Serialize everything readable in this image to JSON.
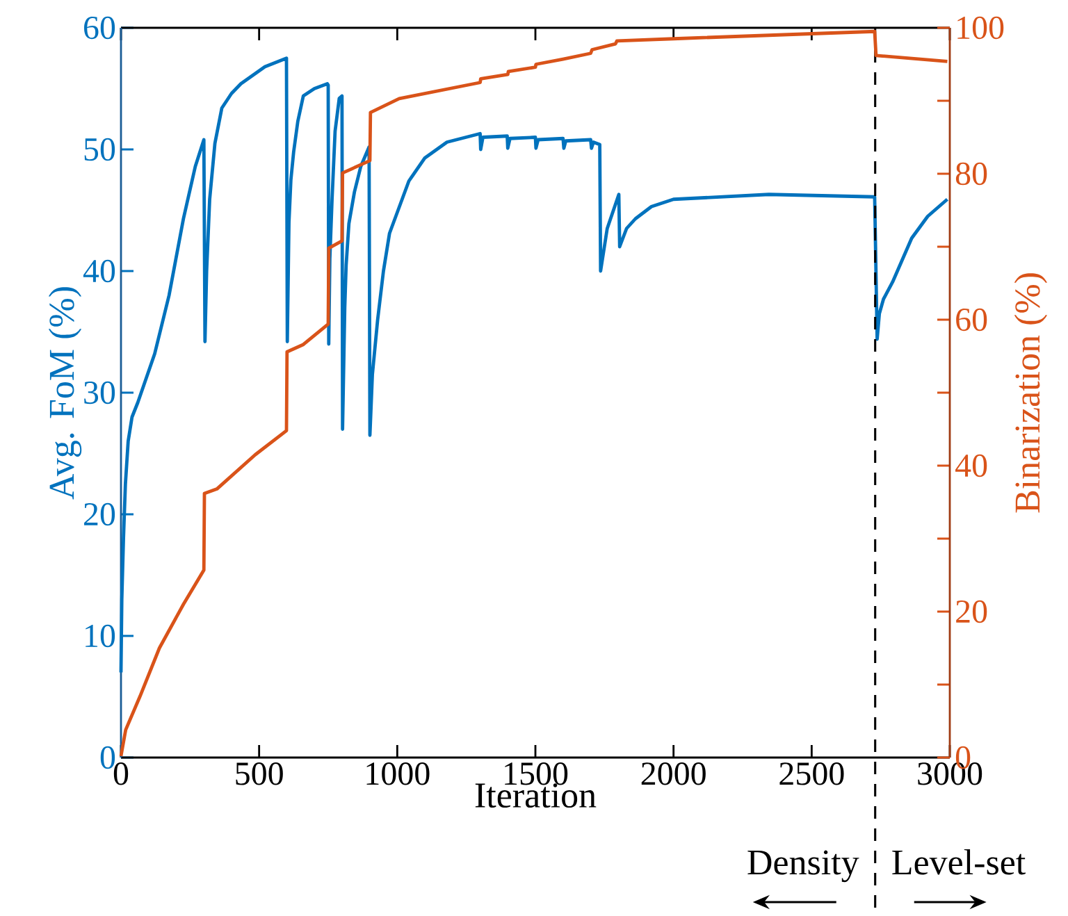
{
  "chart_data": {
    "type": "line",
    "xlabel": "Iteration",
    "ylabel": "Avg. FoM (%)",
    "y2label": "Binarization (%)",
    "xlim": [
      0,
      3000
    ],
    "xticks": [
      0,
      500,
      1000,
      1500,
      2000,
      2500,
      3000
    ],
    "ylim": [
      0,
      60
    ],
    "yticks": [
      0,
      10,
      20,
      30,
      40,
      50,
      60
    ],
    "y2lim": [
      0,
      100
    ],
    "y2ticks": [
      0,
      {
        "value": 10,
        "label": null
      },
      20,
      {
        "value": 30,
        "label": null
      },
      40,
      {
        "value": 50,
        "label": null
      },
      60,
      {
        "value": 70,
        "label": null
      },
      80,
      {
        "value": 90,
        "label": null
      },
      100
    ],
    "series": [
      {
        "color": "#0072bd",
        "x": [
          0,
          3,
          9,
          16,
          26,
          40,
          61,
          122,
          174,
          226,
          269,
          300,
          304,
          310,
          321,
          340,
          365,
          400,
          434,
          521,
          599,
          602,
          608,
          615,
          625,
          640,
          660,
          700,
          747,
          750,
          752,
          756,
          764,
          775,
          790,
          800,
          802,
          810,
          815,
          825,
          845,
          868,
          898,
          901,
          910,
          929,
          950,
          972,
          1042,
          1100,
          1180,
          1300,
          1302,
          1310,
          1398,
          1400,
          1408,
          1500,
          1502,
          1510,
          1600,
          1603,
          1610,
          1700,
          1703,
          1710,
          1733,
          1736,
          1760,
          1802,
          1805,
          1830,
          1862,
          1920,
          2000,
          2345,
          2728,
          2737,
          2745,
          2760,
          2793,
          2862,
          2920,
          2991
        ],
        "values": [
          7,
          13,
          18,
          22.5,
          26,
          28,
          29.2,
          33.2,
          38,
          44.3,
          48.6,
          50.8,
          34.2,
          40,
          45.9,
          50.5,
          53.4,
          54.6,
          55.4,
          56.8,
          57.5,
          34.2,
          44,
          47.5,
          49.8,
          52.3,
          54.4,
          55,
          55.4,
          55.3,
          34,
          41,
          45.9,
          51.5,
          54.2,
          54.4,
          27,
          37,
          40.5,
          43.9,
          46.5,
          48.6,
          50.2,
          26.5,
          31.5,
          36,
          40,
          43.1,
          47.4,
          49.3,
          50.6,
          51.3,
          50,
          51,
          51.1,
          50.1,
          50.9,
          51,
          50.1,
          50.8,
          50.9,
          50.1,
          50.7,
          50.8,
          50.1,
          50.6,
          50.4,
          40,
          43.5,
          46.3,
          42,
          43.5,
          44.3,
          45.3,
          45.9,
          46.3,
          46.1,
          34.4,
          36.5,
          37.7,
          39.1,
          42.7,
          44.5,
          45.9
        ]
      },
      {
        "color": "#d95319",
        "axis": "y2",
        "x": [
          0,
          17,
          69,
          139,
          226,
          300,
          302,
          347,
          486,
          599,
          601,
          660,
          750,
          752,
          800,
          802,
          901,
          903,
          1007,
          1300,
          1302,
          1400,
          1402,
          1500,
          1502,
          1600,
          1700,
          1705,
          1790,
          1795,
          2000,
          2728,
          2733,
          2991
        ],
        "values": [
          0.2,
          3.8,
          8.4,
          15,
          21,
          25.7,
          36.2,
          36.8,
          41.5,
          44.8,
          55.6,
          56.6,
          59.4,
          69.8,
          70.8,
          80.1,
          81.8,
          88.4,
          90.3,
          92.5,
          93,
          93.6,
          94,
          94.6,
          95,
          95.7,
          96.5,
          97,
          97.8,
          98.2,
          98.5,
          99.5,
          96.2,
          95.4
        ]
      }
    ],
    "ref_lines": [
      {
        "axis": "x",
        "value": 2730,
        "color": "#000000",
        "line_style": "dashed"
      }
    ],
    "annotations": [
      "Density",
      "Level-set"
    ]
  }
}
